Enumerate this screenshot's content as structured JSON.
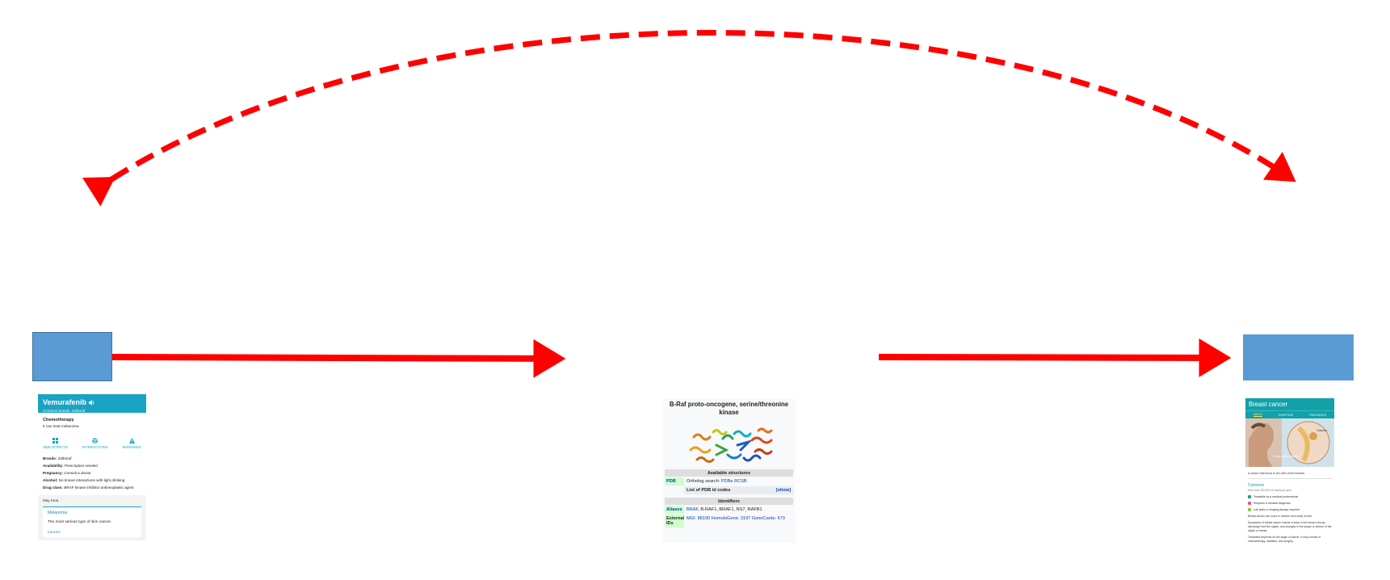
{
  "diagram": {
    "arrow_color": "#ff0000",
    "node_color": "#5b9bd5"
  },
  "drug_card": {
    "title": "Vemurafenib",
    "subtitle": "Common brands: Zelboraf",
    "drug_class": "Chemotherapy",
    "uses": "It can treat melanoma.",
    "icons": [
      {
        "icon": "side-effects-icon",
        "label": "SIDE EFFECTS"
      },
      {
        "icon": "interactions-icon",
        "label": "INTERACTIONS"
      },
      {
        "icon": "warnings-icon",
        "label": "WARNINGS"
      }
    ],
    "facts": [
      {
        "label": "Brands:",
        "value": "Zelboraf"
      },
      {
        "label": "Availability:",
        "value": "Prescription needed"
      },
      {
        "label": "Pregnancy:",
        "value": "Consult a doctor"
      },
      {
        "label": "Alcohol:",
        "value": "No known interactions with light drinking"
      },
      {
        "label": "Drug class:",
        "value": "BRAF kinase inhibitor antineoplastic agent"
      }
    ],
    "may_treat": {
      "label": "May treat",
      "condition": "Melanoma",
      "description": "The most serious type of skin cancer.",
      "category": "Cancers"
    }
  },
  "protein_card": {
    "title": "B-Raf proto-oncogene, serine/threonine kinase",
    "image_icon": "protein-structure-icon",
    "sections": {
      "structures": "Available structures",
      "identifiers": "Identifiers"
    },
    "pdb_label": "PDB",
    "ortholog_text": "Ortholog search:",
    "ortholog_links": "PDBe RCSB",
    "pdb_list": "List of PDB id codes",
    "show_link": "[show]",
    "aliases_label": "Aliases",
    "aliases_link": "BRAF",
    "aliases_rest": ", B-RAF1, BRAF1, NS7, RAFB1",
    "external_label": "External IDs",
    "external_value": "MGI: 88190 HomoloGene: 3197 GeneCards: 673"
  },
  "disease_card": {
    "title": "Breast cancer",
    "tabs": [
      "ABOUT",
      "SYMPTOMS",
      "TREATMENTS"
    ],
    "image_icon": "breast-cancer-illustration-icon",
    "image_labels": {
      "cancer": "Cancer",
      "lump": "Lump, mass or lesion"
    },
    "caption": "A cancer that forms in the cells of the breasts.",
    "common_label": "Common",
    "count_text": "More than 300,000 US cases per year",
    "list": [
      {
        "icon": "treatable-icon",
        "color": "#12a1a9",
        "text": "Treatable by a medical professional"
      },
      {
        "icon": "diagnosis-icon",
        "color": "#e05a7a",
        "text": "Requires a medical diagnosis"
      },
      {
        "icon": "lab-tests-icon",
        "color": "#8dc63f",
        "text": "Lab tests or imaging always required"
      }
    ],
    "para1": "Breast cancer can occur in women and rarely in men.",
    "para2": "Symptoms of breast cancer include a lump in the breast, bloody discharge from the nipple, and changes in the shape or texture of the nipple or breast.",
    "para3": "Treatment depends on the stage of cancer. It may consist of chemotherapy, radiation, and surgery."
  }
}
